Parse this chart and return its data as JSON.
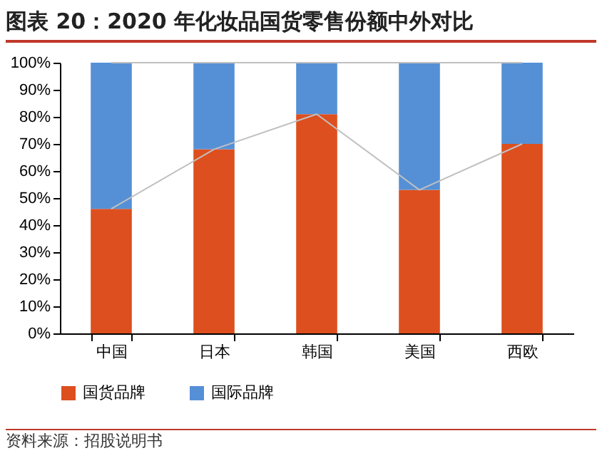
{
  "chart_data": {
    "type": "bar",
    "title": "图表 20：2020 年化妆品国货零售份额中外对比",
    "stacked": true,
    "legend": "bottom",
    "grid": false,
    "categories": [
      "中国",
      "日本",
      "韩国",
      "美国",
      "西欧"
    ],
    "series": [
      {
        "name": "国货品牌",
        "color": "#dd4f1f",
        "values": [
          46,
          68,
          81,
          53,
          70
        ]
      },
      {
        "name": "国际品牌",
        "color": "#5590d6",
        "values": [
          54,
          32,
          19,
          47,
          30
        ]
      },
      {
        "type": "line",
        "color": "#c0c0c0",
        "values": [
          46,
          68,
          81,
          53,
          70
        ]
      },
      {
        "type": "line",
        "color": "#c0c0c0",
        "values": [
          100,
          100,
          100,
          100,
          100
        ]
      }
    ],
    "ylim": [
      0,
      100
    ],
    "yticks": [
      {
        "value": 0,
        "label": "0%"
      },
      {
        "value": 10,
        "label": "10%"
      },
      {
        "value": 20,
        "label": "20%"
      },
      {
        "value": 30,
        "label": "30%"
      },
      {
        "value": 40,
        "label": "40%"
      },
      {
        "value": 50,
        "label": "50%"
      },
      {
        "value": 60,
        "label": "60%"
      },
      {
        "value": 70,
        "label": "70%"
      },
      {
        "value": 80,
        "label": "80%"
      },
      {
        "value": 90,
        "label": "90%"
      },
      {
        "value": 100,
        "label": "100%"
      }
    ],
    "annotations": [
      "资料来源：招股说明书"
    ]
  }
}
